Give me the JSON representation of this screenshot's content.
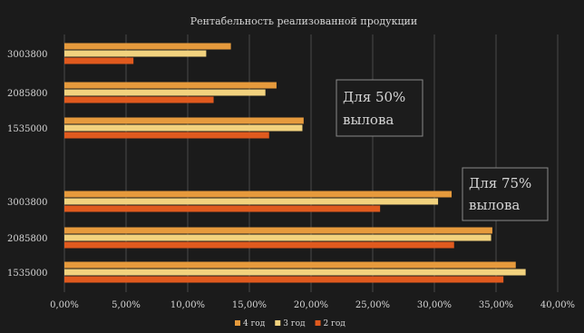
{
  "chart_data": {
    "type": "bar",
    "orientation": "horizontal",
    "title": "Рентабельность реализованной продукции",
    "xlabel": "",
    "ylabel": "",
    "xlim": [
      0,
      40
    ],
    "x_ticks": [
      "0,00%",
      "5,00%",
      "10,00%",
      "15,00%",
      "20,00%",
      "25,00%",
      "30,00%",
      "35,00%",
      "40,00%"
    ],
    "categories": [
      "3003800",
      "2085800",
      "1535000",
      "3003800",
      "2085800",
      "1535000"
    ],
    "series": [
      {
        "name": "4 год",
        "color": "#e69a3c",
        "values": [
          13.5,
          17.2,
          19.4,
          31.4,
          34.7,
          36.6
        ]
      },
      {
        "name": "3 год",
        "color": "#f2d27e",
        "values": [
          11.5,
          16.3,
          19.3,
          30.3,
          34.6,
          37.4
        ]
      },
      {
        "name": "2 год",
        "color": "#e05a1e",
        "values": [
          5.6,
          12.1,
          16.6,
          25.6,
          31.6,
          35.6
        ]
      }
    ],
    "annotations": [
      {
        "lines": [
          "Для 50%",
          "вылова"
        ]
      },
      {
        "lines": [
          "Для 75%",
          "вылова"
        ]
      }
    ],
    "grid": true,
    "legend_position": "bottom"
  }
}
